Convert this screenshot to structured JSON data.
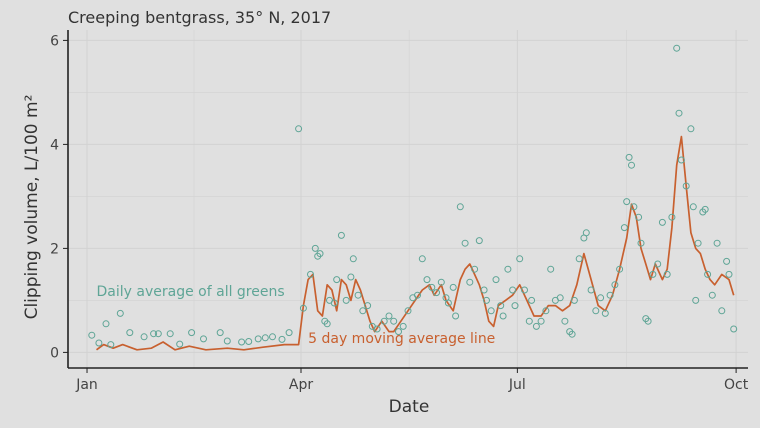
{
  "chart_data": {
    "type": "scatter",
    "title": "Creeping bentgrass, 35° N, 2017",
    "xlabel": "Date",
    "ylabel": "Clipping volume, L/100 m²",
    "x_unit": "date",
    "xlim": [
      "2016-12-24",
      "2017-10-06"
    ],
    "ylim": [
      -0.3,
      6.2
    ],
    "x_ticks": [
      {
        "date": "2017-01-01",
        "label": "Jan"
      },
      {
        "date": "2017-04-01",
        "label": "Apr"
      },
      {
        "date": "2017-07-01",
        "label": "Jul"
      },
      {
        "date": "2017-10-01",
        "label": "Oct"
      }
    ],
    "y_ticks": [
      0,
      2,
      4,
      6
    ],
    "grid": true,
    "annotations": [
      {
        "text": "Daily average of all greens",
        "series": "daily",
        "date": "2017-01-05",
        "y": 1.08
      },
      {
        "text": "5 day moving average line",
        "series": "moving",
        "date": "2017-04-04",
        "y": 0.18
      }
    ],
    "colors": {
      "daily": "#5fa596",
      "moving": "#c8602f",
      "background": "#e0e0e0",
      "grid": "#d2d2d2"
    },
    "series": [
      {
        "type": "scatter",
        "id": "daily",
        "points": [
          [
            "2017-01-03",
            0.33
          ],
          [
            "2017-01-06",
            0.18
          ],
          [
            "2017-01-09",
            0.55
          ],
          [
            "2017-01-11",
            0.15
          ],
          [
            "2017-01-15",
            0.75
          ],
          [
            "2017-01-19",
            0.38
          ],
          [
            "2017-01-25",
            0.3
          ],
          [
            "2017-01-29",
            0.36
          ],
          [
            "2017-01-31",
            0.36
          ],
          [
            "2017-02-05",
            0.36
          ],
          [
            "2017-02-09",
            0.16
          ],
          [
            "2017-02-14",
            0.38
          ],
          [
            "2017-02-19",
            0.26
          ],
          [
            "2017-02-26",
            0.38
          ],
          [
            "2017-03-01",
            0.22
          ],
          [
            "2017-03-07",
            0.2
          ],
          [
            "2017-03-10",
            0.21
          ],
          [
            "2017-03-14",
            0.26
          ],
          [
            "2017-03-17",
            0.28
          ],
          [
            "2017-03-20",
            0.3
          ],
          [
            "2017-03-24",
            0.25
          ],
          [
            "2017-03-27",
            0.38
          ],
          [
            "2017-03-31",
            4.3
          ],
          [
            "2017-04-02",
            0.85
          ],
          [
            "2017-04-05",
            1.5
          ],
          [
            "2017-04-07",
            2.0
          ],
          [
            "2017-04-08",
            1.85
          ],
          [
            "2017-04-09",
            1.9
          ],
          [
            "2017-04-11",
            0.6
          ],
          [
            "2017-04-12",
            0.55
          ],
          [
            "2017-04-13",
            1.0
          ],
          [
            "2017-04-15",
            0.95
          ],
          [
            "2017-04-16",
            1.4
          ],
          [
            "2017-04-18",
            2.25
          ],
          [
            "2017-04-20",
            1.0
          ],
          [
            "2017-04-22",
            1.45
          ],
          [
            "2017-04-23",
            1.8
          ],
          [
            "2017-04-25",
            1.1
          ],
          [
            "2017-04-27",
            0.8
          ],
          [
            "2017-04-29",
            0.9
          ],
          [
            "2017-05-01",
            0.5
          ],
          [
            "2017-05-03",
            0.45
          ],
          [
            "2017-05-06",
            0.6
          ],
          [
            "2017-05-08",
            0.7
          ],
          [
            "2017-05-10",
            0.6
          ],
          [
            "2017-05-12",
            0.4
          ],
          [
            "2017-05-14",
            0.5
          ],
          [
            "2017-05-16",
            0.8
          ],
          [
            "2017-05-18",
            1.05
          ],
          [
            "2017-05-20",
            1.1
          ],
          [
            "2017-05-22",
            1.8
          ],
          [
            "2017-05-24",
            1.4
          ],
          [
            "2017-05-26",
            1.25
          ],
          [
            "2017-05-28",
            1.15
          ],
          [
            "2017-05-30",
            1.35
          ],
          [
            "2017-06-01",
            1.05
          ],
          [
            "2017-06-02",
            0.95
          ],
          [
            "2017-06-04",
            1.25
          ],
          [
            "2017-06-05",
            0.7
          ],
          [
            "2017-06-07",
            2.8
          ],
          [
            "2017-06-09",
            2.1
          ],
          [
            "2017-06-11",
            1.35
          ],
          [
            "2017-06-13",
            1.6
          ],
          [
            "2017-06-15",
            2.15
          ],
          [
            "2017-06-17",
            1.2
          ],
          [
            "2017-06-18",
            1.0
          ],
          [
            "2017-06-20",
            0.8
          ],
          [
            "2017-06-22",
            1.4
          ],
          [
            "2017-06-24",
            0.9
          ],
          [
            "2017-06-25",
            0.7
          ],
          [
            "2017-06-27",
            1.6
          ],
          [
            "2017-06-29",
            1.2
          ],
          [
            "2017-06-30",
            0.9
          ],
          [
            "2017-07-02",
            1.8
          ],
          [
            "2017-07-04",
            1.2
          ],
          [
            "2017-07-06",
            0.6
          ],
          [
            "2017-07-07",
            1.0
          ],
          [
            "2017-07-09",
            0.5
          ],
          [
            "2017-07-11",
            0.6
          ],
          [
            "2017-07-13",
            0.8
          ],
          [
            "2017-07-15",
            1.6
          ],
          [
            "2017-07-17",
            1.0
          ],
          [
            "2017-07-19",
            1.05
          ],
          [
            "2017-07-21",
            0.6
          ],
          [
            "2017-07-23",
            0.4
          ],
          [
            "2017-07-24",
            0.35
          ],
          [
            "2017-07-25",
            1.0
          ],
          [
            "2017-07-27",
            1.8
          ],
          [
            "2017-07-29",
            2.2
          ],
          [
            "2017-07-30",
            2.3
          ],
          [
            "2017-08-01",
            1.2
          ],
          [
            "2017-08-03",
            0.8
          ],
          [
            "2017-08-05",
            1.05
          ],
          [
            "2017-08-07",
            0.75
          ],
          [
            "2017-08-09",
            1.1
          ],
          [
            "2017-08-11",
            1.3
          ],
          [
            "2017-08-13",
            1.6
          ],
          [
            "2017-08-15",
            2.4
          ],
          [
            "2017-08-16",
            2.9
          ],
          [
            "2017-08-17",
            3.75
          ],
          [
            "2017-08-18",
            3.6
          ],
          [
            "2017-08-19",
            2.8
          ],
          [
            "2017-08-21",
            2.6
          ],
          [
            "2017-08-22",
            2.1
          ],
          [
            "2017-08-24",
            0.65
          ],
          [
            "2017-08-25",
            0.6
          ],
          [
            "2017-08-27",
            1.5
          ],
          [
            "2017-08-29",
            1.7
          ],
          [
            "2017-08-31",
            2.5
          ],
          [
            "2017-09-02",
            1.5
          ],
          [
            "2017-09-04",
            2.6
          ],
          [
            "2017-09-06",
            5.85
          ],
          [
            "2017-09-07",
            4.6
          ],
          [
            "2017-09-08",
            3.7
          ],
          [
            "2017-09-10",
            3.2
          ],
          [
            "2017-09-12",
            4.3
          ],
          [
            "2017-09-13",
            2.8
          ],
          [
            "2017-09-14",
            1.0
          ],
          [
            "2017-09-15",
            2.1
          ],
          [
            "2017-09-17",
            2.7
          ],
          [
            "2017-09-18",
            2.75
          ],
          [
            "2017-09-19",
            1.5
          ],
          [
            "2017-09-21",
            1.1
          ],
          [
            "2017-09-23",
            2.1
          ],
          [
            "2017-09-25",
            0.8
          ],
          [
            "2017-09-27",
            1.75
          ],
          [
            "2017-09-28",
            1.5
          ],
          [
            "2017-09-30",
            0.45
          ]
        ]
      },
      {
        "type": "line",
        "id": "moving",
        "points": [
          [
            "2017-01-05",
            0.05
          ],
          [
            "2017-01-08",
            0.15
          ],
          [
            "2017-01-12",
            0.08
          ],
          [
            "2017-01-16",
            0.15
          ],
          [
            "2017-01-22",
            0.05
          ],
          [
            "2017-01-28",
            0.08
          ],
          [
            "2017-02-02",
            0.2
          ],
          [
            "2017-02-07",
            0.05
          ],
          [
            "2017-02-13",
            0.12
          ],
          [
            "2017-02-20",
            0.05
          ],
          [
            "2017-03-01",
            0.08
          ],
          [
            "2017-03-08",
            0.05
          ],
          [
            "2017-03-16",
            0.1
          ],
          [
            "2017-03-25",
            0.15
          ],
          [
            "2017-03-31",
            0.15
          ],
          [
            "2017-04-02",
            0.9
          ],
          [
            "2017-04-04",
            1.4
          ],
          [
            "2017-04-06",
            1.5
          ],
          [
            "2017-04-08",
            0.8
          ],
          [
            "2017-04-10",
            0.7
          ],
          [
            "2017-04-12",
            1.3
          ],
          [
            "2017-04-14",
            1.2
          ],
          [
            "2017-04-16",
            0.8
          ],
          [
            "2017-04-18",
            1.4
          ],
          [
            "2017-04-20",
            1.3
          ],
          [
            "2017-04-22",
            1.0
          ],
          [
            "2017-04-24",
            1.4
          ],
          [
            "2017-04-26",
            1.2
          ],
          [
            "2017-04-28",
            0.9
          ],
          [
            "2017-04-30",
            0.6
          ],
          [
            "2017-05-02",
            0.4
          ],
          [
            "2017-05-05",
            0.6
          ],
          [
            "2017-05-08",
            0.4
          ],
          [
            "2017-05-10",
            0.4
          ],
          [
            "2017-05-13",
            0.6
          ],
          [
            "2017-05-16",
            0.8
          ],
          [
            "2017-05-19",
            1.0
          ],
          [
            "2017-05-22",
            1.2
          ],
          [
            "2017-05-25",
            1.3
          ],
          [
            "2017-05-27",
            1.1
          ],
          [
            "2017-05-30",
            1.3
          ],
          [
            "2017-06-01",
            1.0
          ],
          [
            "2017-06-04",
            0.8
          ],
          [
            "2017-06-07",
            1.4
          ],
          [
            "2017-06-09",
            1.6
          ],
          [
            "2017-06-11",
            1.7
          ],
          [
            "2017-06-13",
            1.5
          ],
          [
            "2017-06-15",
            1.3
          ],
          [
            "2017-06-17",
            1.0
          ],
          [
            "2017-06-19",
            0.6
          ],
          [
            "2017-06-21",
            0.5
          ],
          [
            "2017-06-23",
            0.9
          ],
          [
            "2017-06-26",
            1.0
          ],
          [
            "2017-06-29",
            1.1
          ],
          [
            "2017-07-02",
            1.3
          ],
          [
            "2017-07-05",
            1.0
          ],
          [
            "2017-07-08",
            0.7
          ],
          [
            "2017-07-11",
            0.7
          ],
          [
            "2017-07-14",
            0.9
          ],
          [
            "2017-07-17",
            0.9
          ],
          [
            "2017-07-20",
            0.8
          ],
          [
            "2017-07-23",
            0.9
          ],
          [
            "2017-07-26",
            1.3
          ],
          [
            "2017-07-29",
            1.9
          ],
          [
            "2017-08-01",
            1.4
          ],
          [
            "2017-08-04",
            0.9
          ],
          [
            "2017-08-07",
            0.8
          ],
          [
            "2017-08-10",
            1.1
          ],
          [
            "2017-08-13",
            1.6
          ],
          [
            "2017-08-16",
            2.2
          ],
          [
            "2017-08-18",
            2.85
          ],
          [
            "2017-08-20",
            2.6
          ],
          [
            "2017-08-22",
            2.0
          ],
          [
            "2017-08-24",
            1.7
          ],
          [
            "2017-08-26",
            1.4
          ],
          [
            "2017-08-28",
            1.7
          ],
          [
            "2017-08-31",
            1.4
          ],
          [
            "2017-09-02",
            1.6
          ],
          [
            "2017-09-04",
            2.4
          ],
          [
            "2017-09-06",
            3.6
          ],
          [
            "2017-09-08",
            4.15
          ],
          [
            "2017-09-10",
            3.2
          ],
          [
            "2017-09-12",
            2.3
          ],
          [
            "2017-09-14",
            2.0
          ],
          [
            "2017-09-16",
            1.9
          ],
          [
            "2017-09-18",
            1.6
          ],
          [
            "2017-09-20",
            1.4
          ],
          [
            "2017-09-22",
            1.3
          ],
          [
            "2017-09-25",
            1.5
          ],
          [
            "2017-09-28",
            1.4
          ],
          [
            "2017-09-30",
            1.1
          ]
        ]
      }
    ]
  }
}
